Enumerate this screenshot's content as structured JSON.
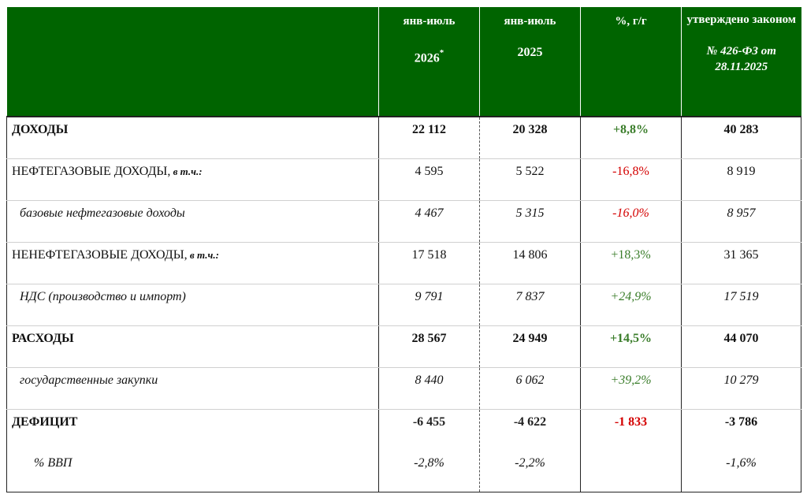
{
  "header": {
    "col1_top": "янв-июль",
    "col1_year": "2026",
    "col1_mark": "*",
    "col2_top": "янв-июль",
    "col2_year": "2025",
    "col3": "%, г/г",
    "col4_top": "утверждено законом",
    "col4_law": "№ 426-ФЗ от 28.11.2025"
  },
  "rows": [
    {
      "label": "ДОХОДЫ",
      "suffix": "",
      "v1": "22 112",
      "v2": "20 328",
      "pct": "+8,8%",
      "law": "40 283"
    },
    {
      "label": "НЕФТЕГАЗОВЫЕ ДОХОДЫ,",
      "suffix": " в т.ч.:",
      "v1": "4 595",
      "v2": "5 522",
      "pct": "-16,8%",
      "law": "8 919"
    },
    {
      "label": "базовые нефтегазовые доходы",
      "suffix": "",
      "v1": "4 467",
      "v2": "5 315",
      "pct": "-16,0%",
      "law": "8 957"
    },
    {
      "label": "НЕНЕФТЕГАЗОВЫЕ ДОХОДЫ,",
      "suffix": " в т.ч.:",
      "v1": "17 518",
      "v2": "14 806",
      "pct": "+18,3%",
      "law": "31 365"
    },
    {
      "label": "НДС (производство и импорт)",
      "suffix": "",
      "v1": "9 791",
      "v2": "7 837",
      "pct": "+24,9%",
      "law": "17 519"
    },
    {
      "label": "РАСХОДЫ",
      "suffix": "",
      "v1": "28 567",
      "v2": "24 949",
      "pct": "+14,5%",
      "law": "44 070"
    },
    {
      "label": "государственные закупки",
      "suffix": "",
      "v1": "8 440",
      "v2": "6 062",
      "pct": "+39,2%",
      "law": "10 279"
    },
    {
      "label": "ДЕФИЦИТ",
      "suffix": "",
      "v1": "-6 455",
      "v2": "-4 622",
      "pct": "-1 833",
      "law": "-3 786"
    },
    {
      "label": "% ВВП",
      "suffix": "",
      "v1": "-2,8%",
      "v2": "-2,2%",
      "pct": "",
      "law": "-1,6%"
    }
  ],
  "colors": {
    "header_bg": "#006400",
    "positive": "#3a7d2a",
    "negative": "#d40000"
  }
}
